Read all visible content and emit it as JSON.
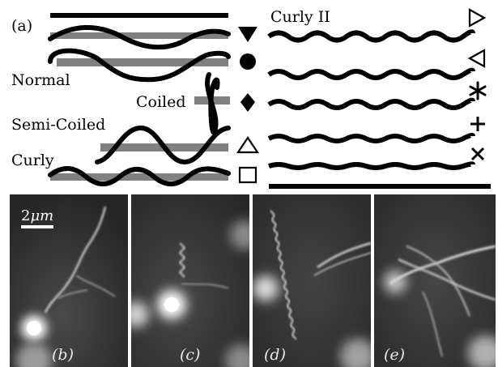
{
  "figure": {
    "panel_a_label": "(a)",
    "labels": {
      "curly_ii": "Curly II",
      "normal": "Normal",
      "coiled": "Coiled",
      "semi_coiled": "Semi-Coiled",
      "curly": "Curly"
    },
    "marker_symbols": [
      "filled-down-triangle",
      "filled-circle",
      "filled-diamond",
      "open-up-triangle",
      "open-square"
    ],
    "curly_ii_markers": [
      "open-right-triangle",
      "open-left-triangle",
      "asterisk",
      "plus",
      "cross"
    ],
    "scale_bar": {
      "base": "2",
      "unit": "μm"
    },
    "micrograph_labels": [
      "(b)",
      "(c)",
      "(d)",
      "(e)"
    ]
  }
}
